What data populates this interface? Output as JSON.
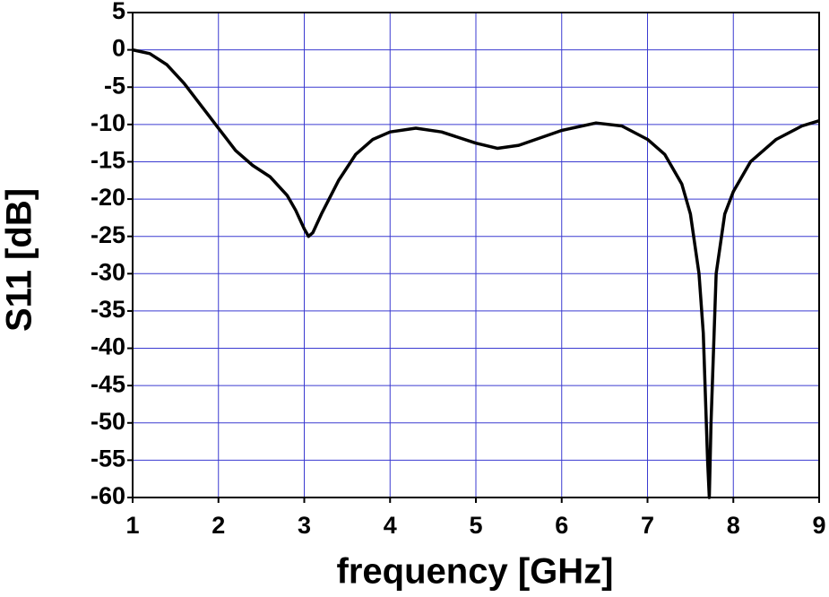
{
  "chart_data": {
    "type": "line",
    "x_label": "frequency [GHz]",
    "y_label": "S11 [dB]",
    "x": [
      1,
      1.2,
      1.4,
      1.6,
      1.8,
      2.0,
      2.2,
      2.4,
      2.6,
      2.8,
      2.9,
      3.0,
      3.05,
      3.1,
      3.2,
      3.4,
      3.6,
      3.8,
      4.0,
      4.3,
      4.6,
      5.0,
      5.25,
      5.5,
      6.0,
      6.4,
      6.7,
      7.0,
      7.2,
      7.4,
      7.5,
      7.6,
      7.65,
      7.7,
      7.72,
      7.74,
      7.8,
      7.9,
      8.0,
      8.2,
      8.5,
      8.8,
      9.0
    ],
    "series": [
      {
        "name": "S11",
        "color": "#000000",
        "values": [
          0,
          -0.5,
          -2,
          -4.5,
          -7.5,
          -10.5,
          -13.5,
          -15.5,
          -17,
          -19.5,
          -21.5,
          -24,
          -25,
          -24.5,
          -22,
          -17.5,
          -14,
          -12,
          -11,
          -10.5,
          -11,
          -12.5,
          -13.2,
          -12.8,
          -10.8,
          -9.8,
          -10.2,
          -12,
          -14,
          -18,
          -22,
          -30,
          -38,
          -55,
          -60,
          -50,
          -30,
          -22,
          -19,
          -15,
          -12,
          -10.2,
          -9.5
        ]
      }
    ],
    "xlim": [
      1,
      9
    ],
    "xticks": [
      1,
      2,
      3,
      4,
      5,
      6,
      7,
      8,
      9
    ],
    "ylim": [
      -60,
      5
    ],
    "yticks": [
      -60,
      -55,
      -50,
      -45,
      -40,
      -35,
      -30,
      -25,
      -20,
      -15,
      -10,
      -5,
      0,
      5
    ],
    "grid": true,
    "grid_color": "#3a3ad0"
  }
}
